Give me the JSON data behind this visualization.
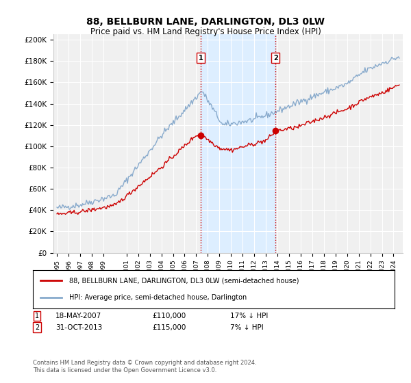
{
  "title": "88, BELLBURN LANE, DARLINGTON, DL3 0LW",
  "subtitle": "Price paid vs. HM Land Registry's House Price Index (HPI)",
  "ylabel_ticks": [
    "£0",
    "£20K",
    "£40K",
    "£60K",
    "£80K",
    "£100K",
    "£120K",
    "£140K",
    "£160K",
    "£180K",
    "£200K"
  ],
  "ytick_values": [
    0,
    20000,
    40000,
    60000,
    80000,
    100000,
    120000,
    140000,
    160000,
    180000,
    200000
  ],
  "ylim": [
    0,
    205000
  ],
  "xlim_start": 1994.7,
  "xlim_end": 2024.8,
  "sale1_date": 2007.38,
  "sale1_price": 110000,
  "sale1_label": "1",
  "sale2_date": 2013.83,
  "sale2_price": 115000,
  "sale2_label": "2",
  "highlight_color": "#ddeeff",
  "vline_color": "#cc0000",
  "vline_style": ":",
  "red_line_color": "#cc0000",
  "blue_line_color": "#88aacc",
  "background_color": "#f0f0f0",
  "legend_label_red": "88, BELLBURN LANE, DARLINGTON, DL3 0LW (semi-detached house)",
  "legend_label_blue": "HPI: Average price, semi-detached house, Darlington",
  "footer": "Contains HM Land Registry data © Crown copyright and database right 2024.\nThis data is licensed under the Open Government Licence v3.0.",
  "xtick_years": [
    1995,
    1996,
    1997,
    1998,
    1999,
    2001,
    2002,
    2003,
    2004,
    2005,
    2006,
    2007,
    2008,
    2009,
    2010,
    2011,
    2012,
    2013,
    2014,
    2015,
    2016,
    2017,
    2018,
    2019,
    2020,
    2021,
    2022,
    2023,
    2024
  ]
}
